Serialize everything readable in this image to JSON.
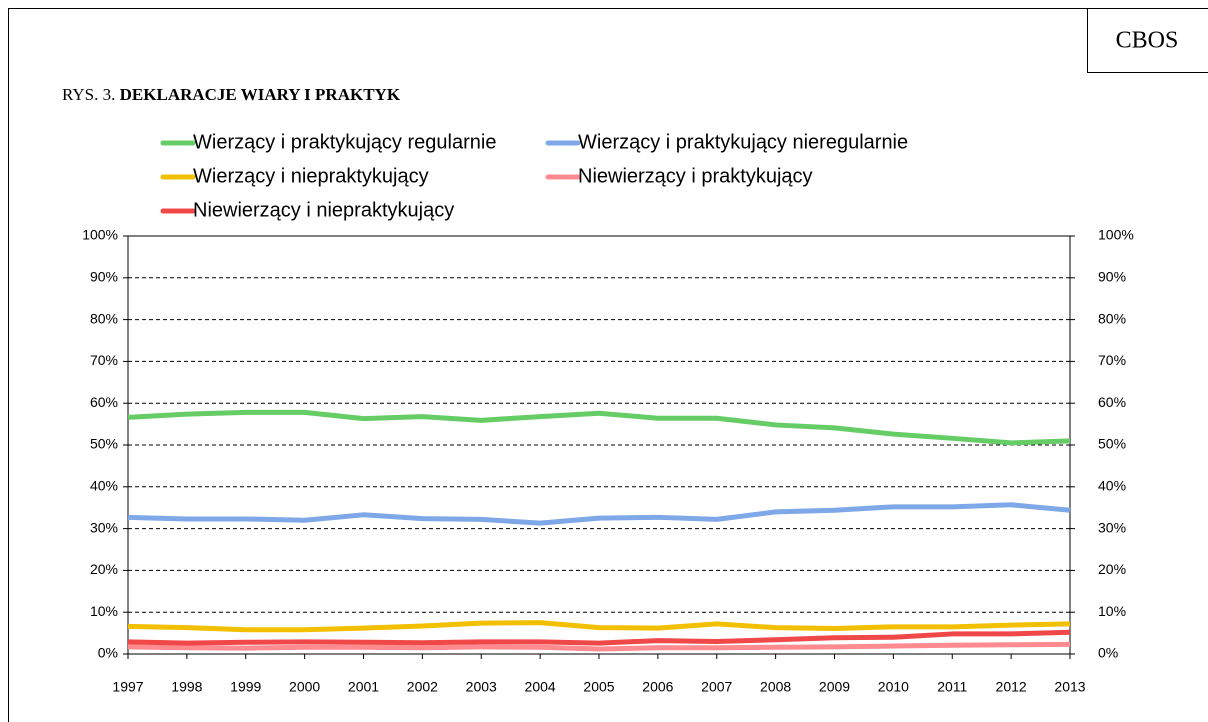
{
  "header": {
    "badge": "CBOS",
    "figure_number": "RYS. 3.",
    "figure_title": "DEKLARACJE WIARY I PRAKTYK"
  },
  "chart_data": {
    "type": "line",
    "categories": [
      "1997",
      "1998",
      "1999",
      "2000",
      "2001",
      "2002",
      "2003",
      "2004",
      "2005",
      "2006",
      "2007",
      "2008",
      "2009",
      "2010",
      "2011",
      "2012",
      "2013"
    ],
    "series": [
      {
        "name": "Wierzący i praktykujący regularnie",
        "color": "#66cc66",
        "values": [
          56.6,
          57.4,
          57.8,
          57.8,
          56.3,
          56.8,
          55.9,
          56.8,
          57.6,
          56.4,
          56.4,
          54.8,
          54.1,
          52.6,
          51.6,
          50.5,
          51.0
        ]
      },
      {
        "name": "Wierzący i praktykujący nieregularnie",
        "color": "#7fa8e8",
        "values": [
          32.7,
          32.3,
          32.3,
          32.0,
          33.3,
          32.4,
          32.2,
          31.3,
          32.5,
          32.7,
          32.2,
          34.0,
          34.4,
          35.2,
          35.2,
          35.7,
          34.4
        ]
      },
      {
        "name": "Wierzący i niepraktykujący",
        "color": "#f2c000",
        "values": [
          6.6,
          6.3,
          5.8,
          5.8,
          6.2,
          6.7,
          7.4,
          7.5,
          6.3,
          6.2,
          7.2,
          6.3,
          6.1,
          6.5,
          6.5,
          6.9,
          7.2
        ]
      },
      {
        "name": "Niewierzący i praktykujący",
        "color": "#ff8a90",
        "values": [
          1.7,
          1.5,
          1.4,
          1.6,
          1.6,
          1.5,
          1.7,
          1.6,
          1.2,
          1.5,
          1.5,
          1.6,
          1.7,
          1.9,
          2.1,
          2.2,
          2.3
        ]
      },
      {
        "name": "Niewierzący i niepraktykujący",
        "color": "#f04848",
        "values": [
          2.9,
          2.6,
          2.8,
          2.9,
          2.8,
          2.7,
          2.9,
          2.9,
          2.6,
          3.2,
          3.0,
          3.4,
          3.9,
          4.0,
          4.8,
          4.8,
          5.2
        ]
      }
    ],
    "ylim": [
      0,
      100
    ],
    "yticks": [
      {
        "value": 0,
        "label": "0%"
      },
      {
        "value": 10,
        "label": "10%"
      },
      {
        "value": 20,
        "label": "20%"
      },
      {
        "value": 30,
        "label": "30%"
      },
      {
        "value": 40,
        "label": "40%"
      },
      {
        "value": 50,
        "label": "50%"
      },
      {
        "value": 60,
        "label": "60%"
      },
      {
        "value": 70,
        "label": "70%"
      },
      {
        "value": 80,
        "label": "80%"
      },
      {
        "value": 90,
        "label": "90%"
      },
      {
        "value": 100,
        "label": "100%"
      }
    ],
    "grid": true
  }
}
